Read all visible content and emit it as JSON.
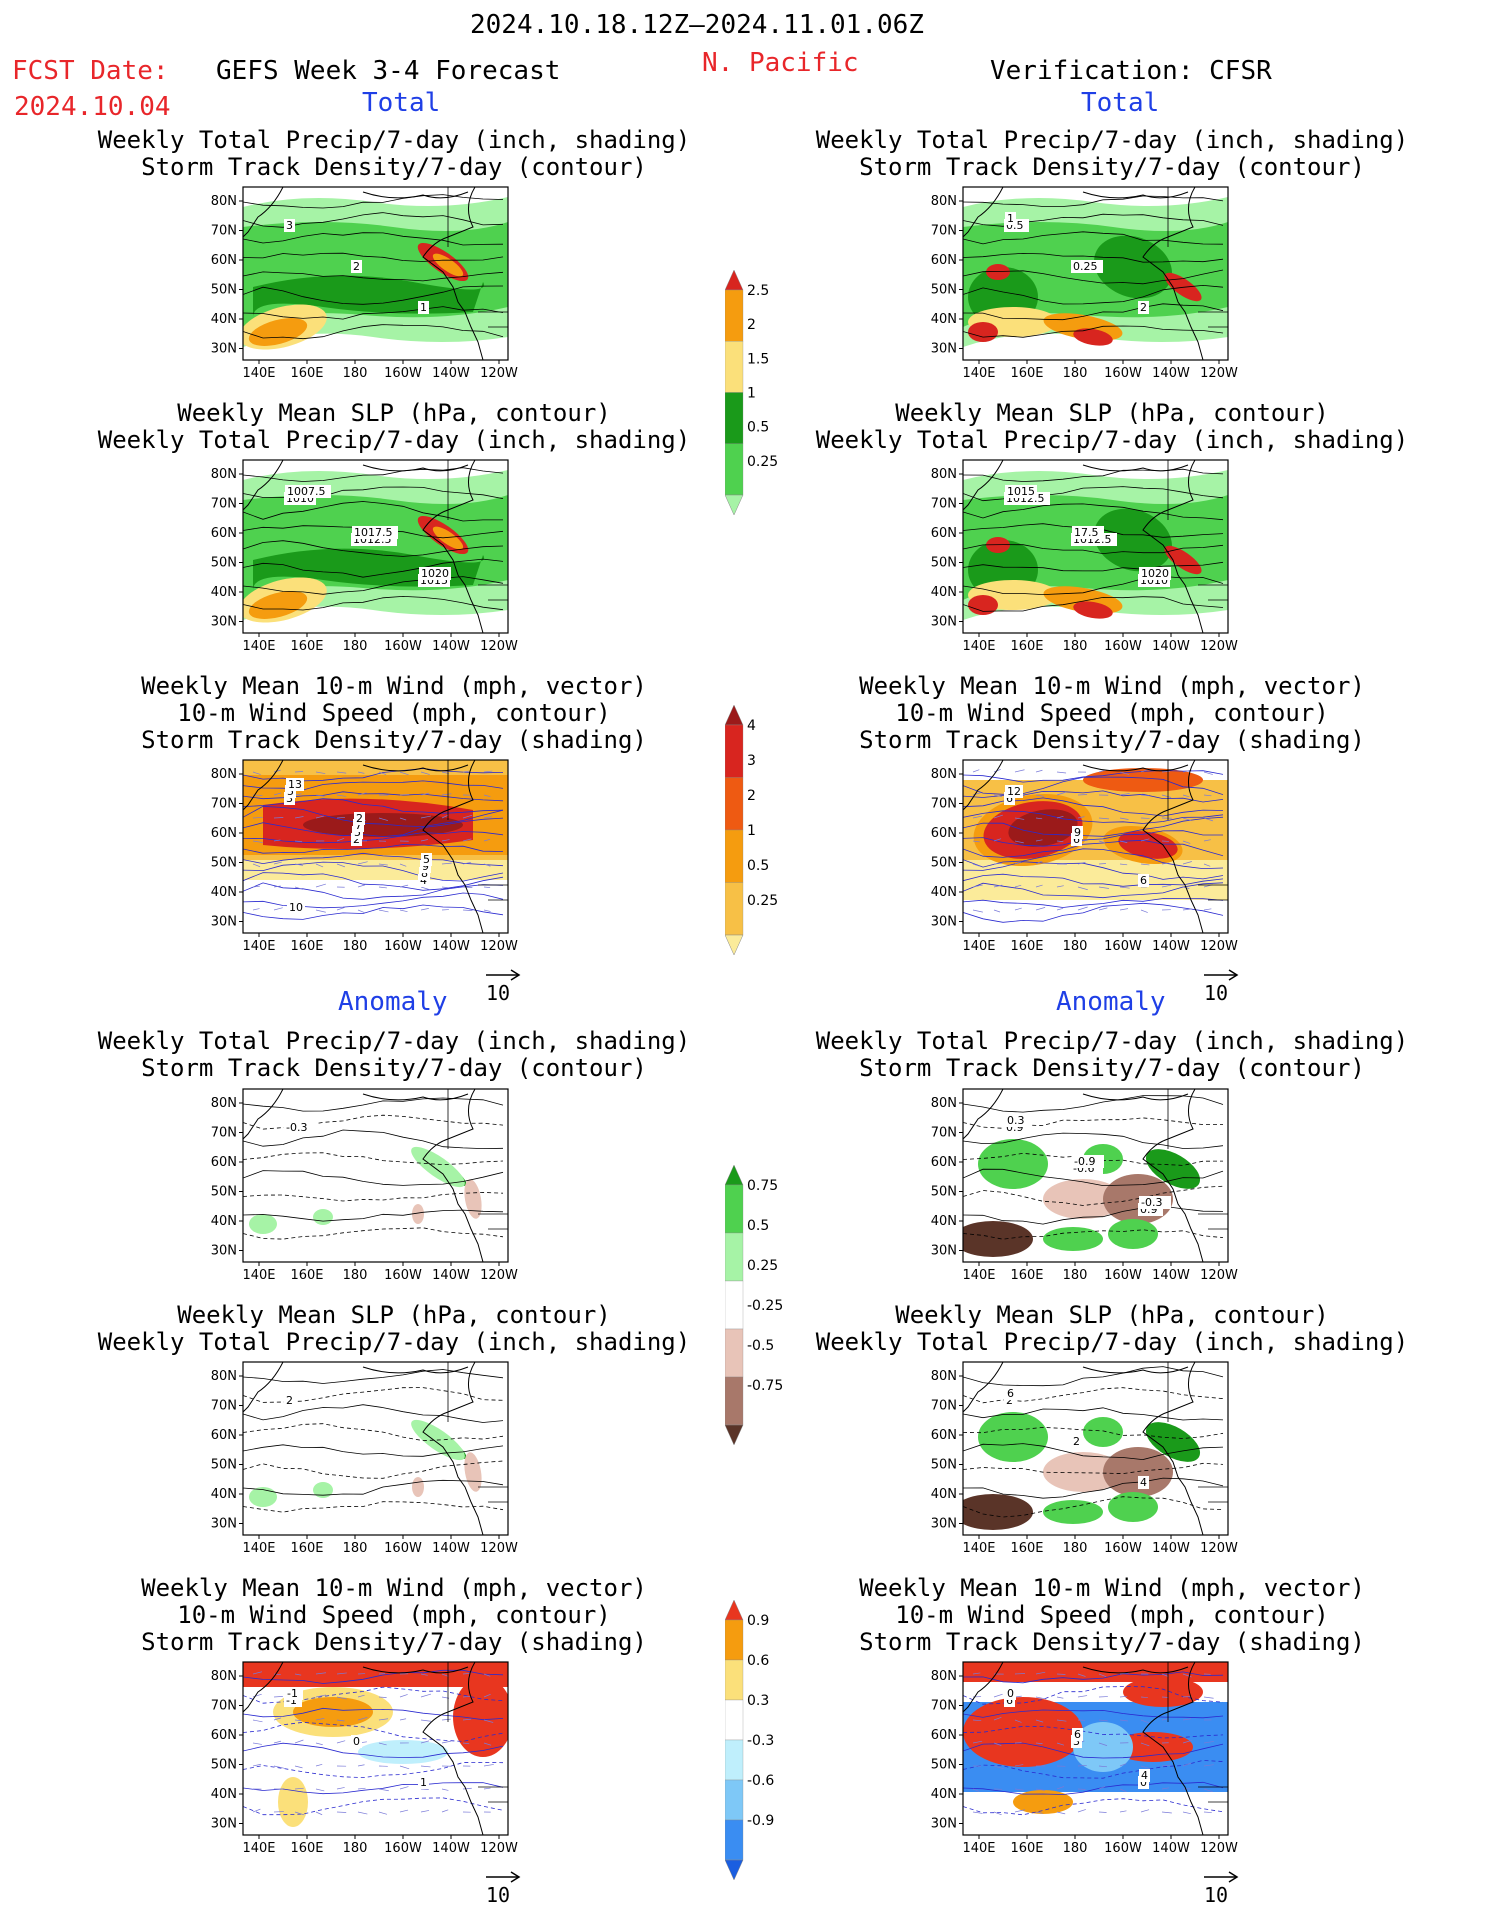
{
  "header": {
    "date_range": "2024.10.18.12Z–2024.11.01.06Z",
    "fcst_label": "FCST Date:",
    "fcst_date": "2024.10.04",
    "model": "GEFS Week 3-4 Forecast",
    "region": "N. Pacific",
    "verification": "Verification: CFSR"
  },
  "sections": {
    "total": "Total",
    "anomaly": "Anomaly"
  },
  "panel_titles": {
    "precip_storm": [
      "Weekly Total Precip/7-day (inch, shading)",
      "Storm Track Density/7-day (contour)"
    ],
    "slp_precip": [
      "Weekly Mean SLP (hPa, contour)",
      "Weekly Total Precip/7-day (inch, shading)"
    ],
    "wind_storm": [
      "Weekly Mean 10-m Wind (mph, vector)",
      "10-m Wind Speed (mph, contour)",
      "Storm Track Density/7-day (shading)"
    ]
  },
  "axes": {
    "lat": [
      "80N",
      "70N",
      "60N",
      "50N",
      "40N",
      "30N"
    ],
    "lon": [
      "140E",
      "160E",
      "180",
      "160W",
      "140W",
      "120W"
    ]
  },
  "vector_ref": "10",
  "colorbars": [
    {
      "ticks": [
        "2.5",
        "2",
        "1.5",
        "1",
        "0.5",
        "0.25"
      ],
      "colors": [
        "#d8251f",
        "#f59c0f",
        "#fbe07a",
        "#1a9a1a",
        "#4fd14f",
        "#a6f3a6"
      ]
    },
    {
      "ticks": [
        "4",
        "3",
        "2",
        "1",
        "0.5",
        "0.25"
      ],
      "colors": [
        "#9b1a1a",
        "#d8251f",
        "#ee5a12",
        "#f59c0f",
        "#f7c046",
        "#fbeb9a"
      ]
    },
    {
      "ticks": [
        "0.75",
        "0.5",
        "0.25",
        "-0.25",
        "-0.5",
        "-0.75"
      ],
      "colors": [
        "#1a9a1a",
        "#4fd14f",
        "#a6f3a6",
        "#ffffff",
        "#e8c4b8",
        "#a8786a",
        "#5a3428"
      ]
    },
    {
      "ticks": [
        "0.9",
        "0.6",
        "0.3",
        "-0.3",
        "-0.6",
        "-0.9"
      ],
      "colors": [
        "#e8361f",
        "#f59c0f",
        "#fbe07a",
        "#ffffff",
        "#bfeffc",
        "#7ec8f7",
        "#3a8df2",
        "#1a5ee0"
      ]
    }
  ],
  "contour_labels": {
    "f_tot_precip": [
      "3",
      "2",
      "1"
    ],
    "v_tot_precip": [
      "0.5",
      "0.25",
      "2",
      "1"
    ],
    "f_tot_slp": [
      "1010",
      "1012.5",
      "1015",
      "1007.5",
      "1017.5",
      "1020"
    ],
    "v_tot_slp": [
      "1012.5",
      "1012.5",
      "1010",
      "1015",
      "17.5",
      "1020"
    ],
    "f_tot_wind": [
      "3",
      "2",
      "4",
      "5",
      "5",
      "8",
      "13",
      "7",
      "9",
      "10",
      "2",
      "5"
    ],
    "v_tot_wind": [
      "6",
      "6",
      "6",
      "12",
      "9"
    ],
    "f_an_precip": [
      "-0.3"
    ],
    "v_an_precip": [
      "0.9",
      "-0.6",
      "0.9",
      "0.3",
      "-0.9",
      "-0.3"
    ],
    "f_an_slp": [
      "2"
    ],
    "v_an_slp": [
      "2",
      "2",
      "4",
      "6"
    ],
    "f_an_wind": [
      "-1",
      "0",
      "1",
      "-1"
    ],
    "v_an_wind": [
      "6",
      "3",
      "0",
      "0",
      "6",
      "4"
    ]
  }
}
